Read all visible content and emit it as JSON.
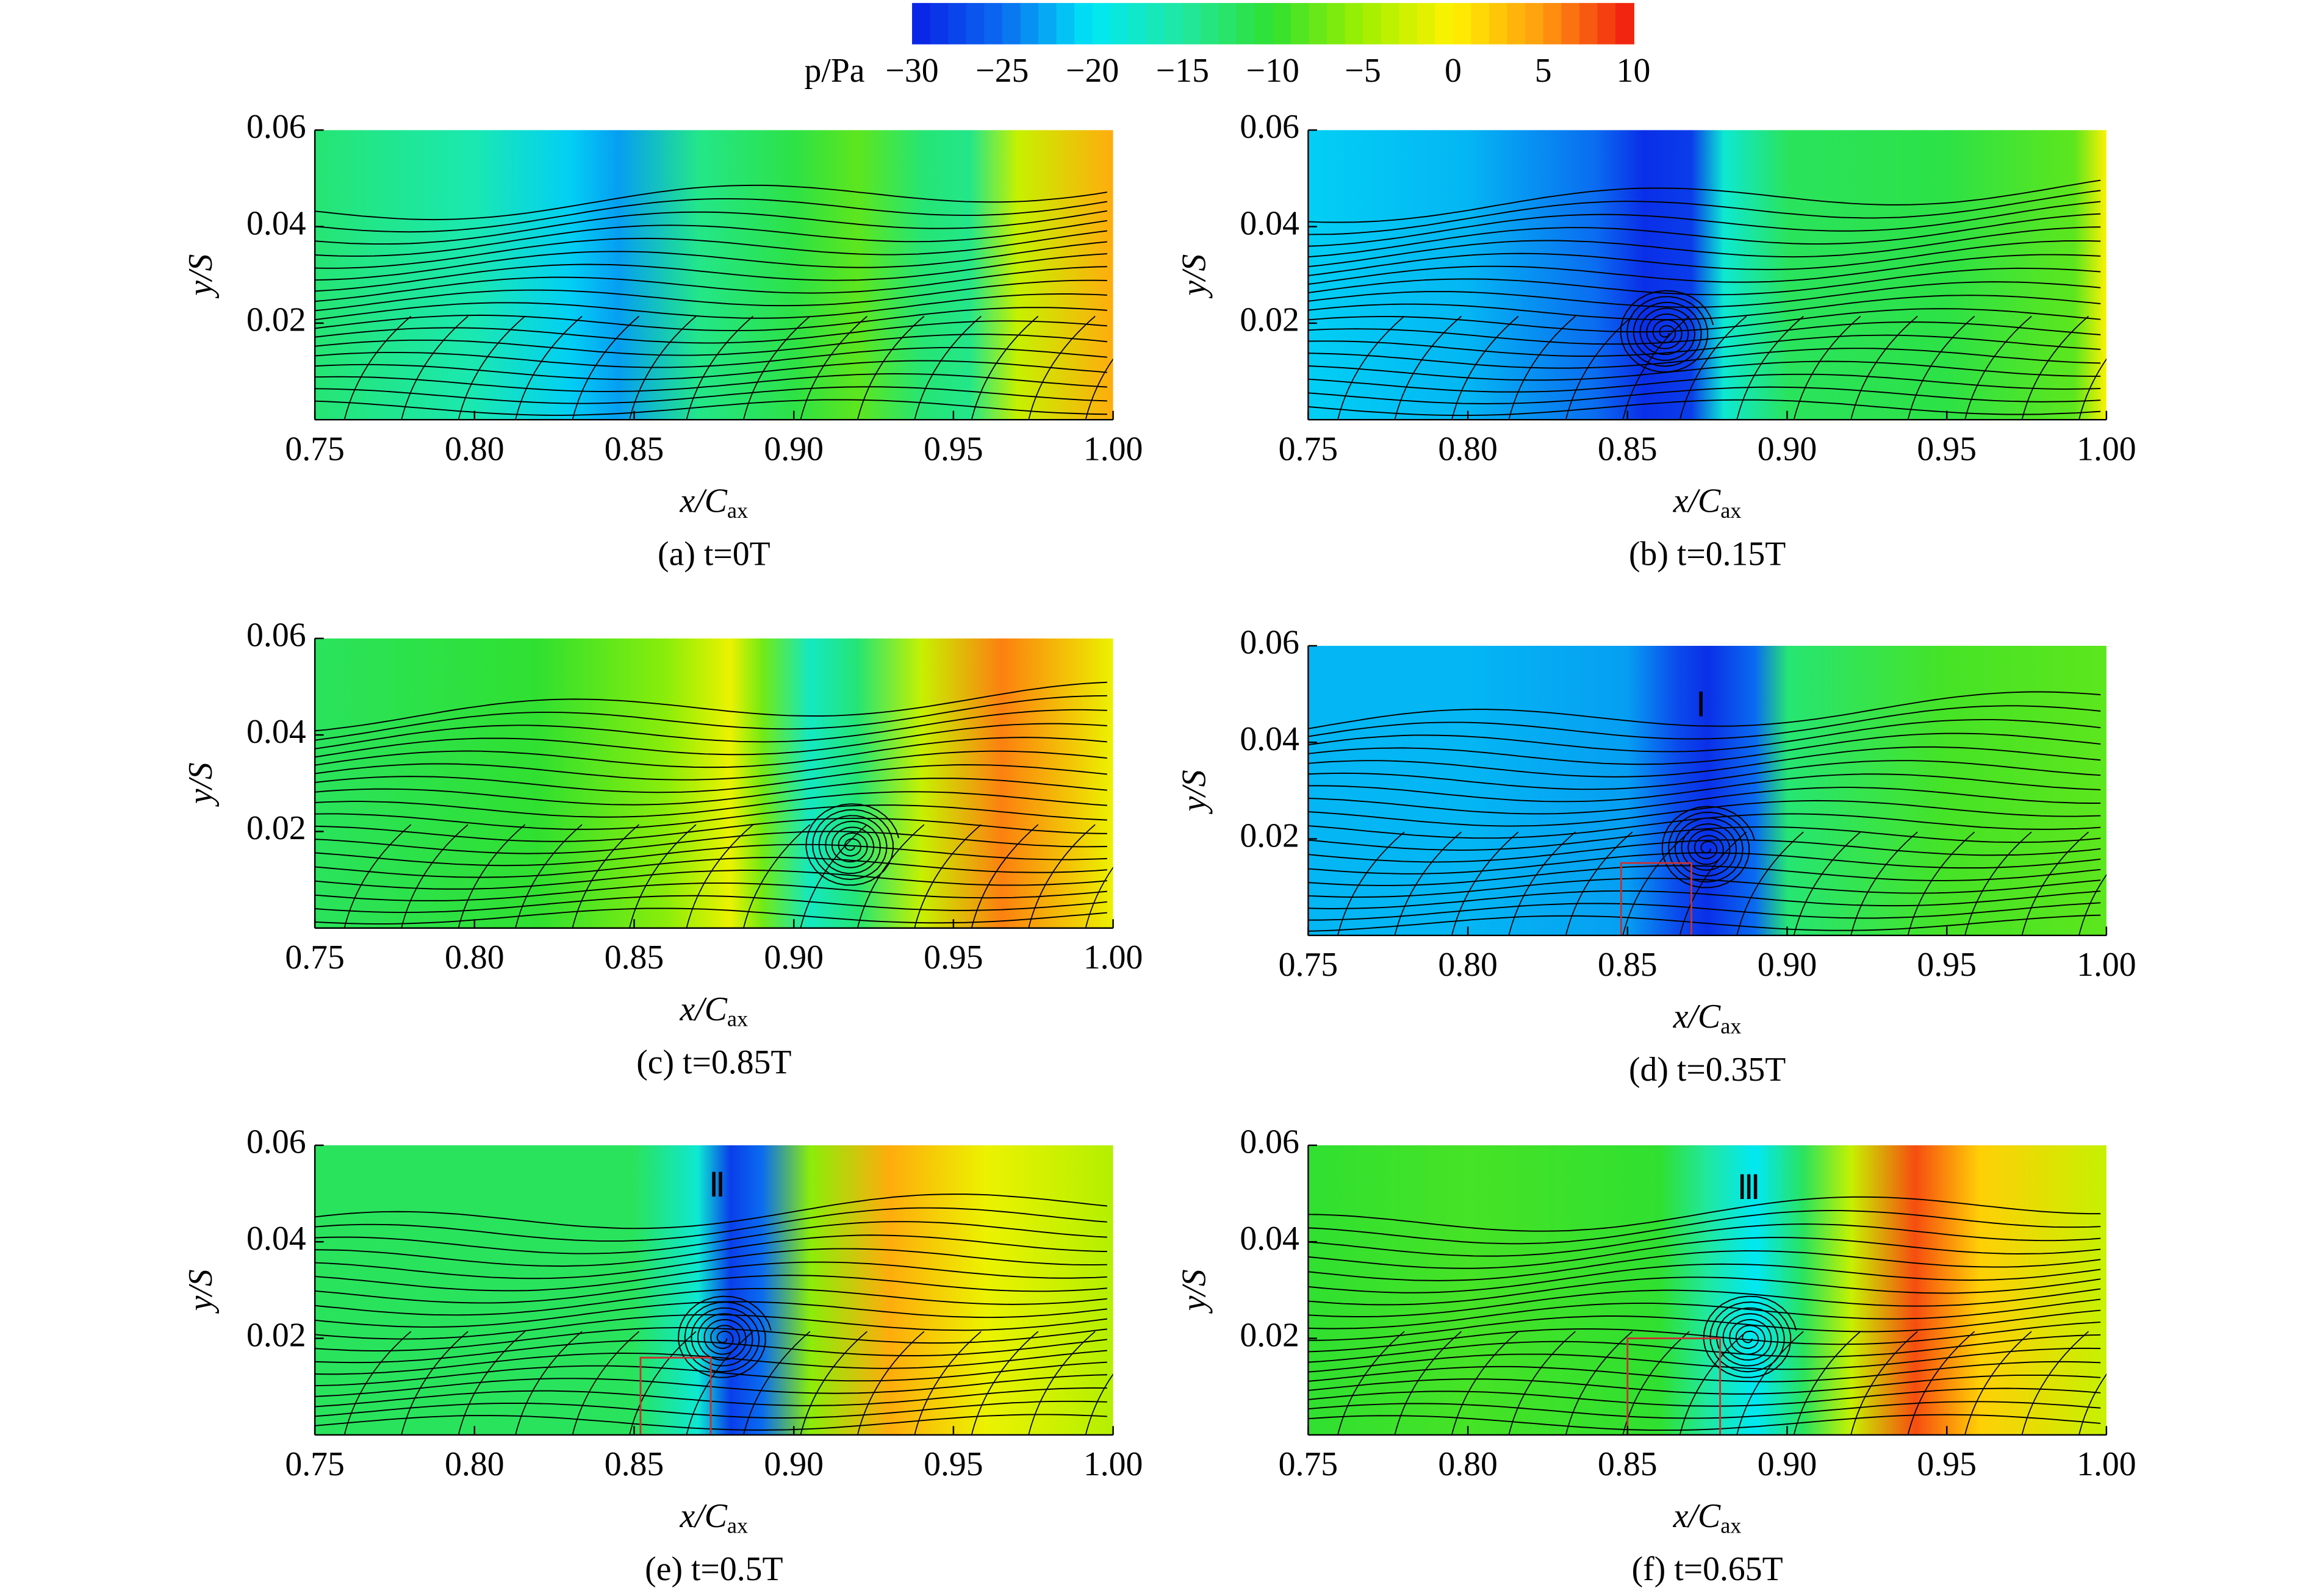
{
  "colorbar": {
    "label": "p/Pa",
    "lim": [
      -30,
      10
    ],
    "ticks": [
      {
        "value": -30,
        "label": "−30"
      },
      {
        "value": -25,
        "label": "−25"
      },
      {
        "value": -20,
        "label": "−20"
      },
      {
        "value": -15,
        "label": "−15"
      },
      {
        "value": -10,
        "label": "−10"
      },
      {
        "value": -5,
        "label": "−5"
      },
      0,
      5,
      10
    ],
    "colors": [
      "#0a1ee6",
      "#0a6cf0",
      "#00e8f5",
      "#20e8a0",
      "#30e030",
      "#a0f000",
      "#fff200",
      "#ff9a10",
      "#f01810"
    ]
  },
  "chart_data": [
    {
      "type": "contour",
      "caption": "(a) t=0T",
      "xlabel": "x/C",
      "xlabel_sub": "ax",
      "ylabel": "y/S",
      "xlim": [
        0.75,
        1.0
      ],
      "ylim": [
        0,
        0.06
      ],
      "xticks": [
        0.75,
        {
          "value": 0.8,
          "label": "0.80"
        },
        0.85,
        {
          "value": 0.9,
          "label": "0.90"
        },
        0.95,
        {
          "value": 1.0,
          "label": "1.00"
        }
      ],
      "yticks": [
        0.02,
        0.04,
        0.06
      ],
      "x": [
        0.75,
        0.8,
        0.83,
        0.845,
        0.87,
        0.9,
        0.92,
        0.94,
        0.955,
        0.97,
        1.0
      ],
      "pressure": [
        -13,
        -16,
        -21,
        -23,
        -14,
        -11,
        -8,
        -13,
        -14,
        -3,
        4
      ]
    },
    {
      "type": "contour",
      "caption": "(b) t=0.15T",
      "xlabel": "x/C",
      "xlabel_sub": "ax",
      "ylabel": "y/S",
      "xlim": [
        0.75,
        1.0
      ],
      "ylim": [
        0,
        0.06
      ],
      "xticks": [
        0.75,
        {
          "value": 0.8,
          "label": "0.80"
        },
        0.85,
        {
          "value": 0.9,
          "label": "0.90"
        },
        0.95,
        {
          "value": 1.0,
          "label": "1.00"
        }
      ],
      "yticks": [
        0.02,
        0.04,
        0.06
      ],
      "x": [
        0.75,
        0.8,
        0.84,
        0.855,
        0.87,
        0.88,
        0.9,
        0.95,
        0.99,
        1.0
      ],
      "pressure": [
        -21,
        -22,
        -25,
        -29,
        -28,
        -18,
        -12,
        -11,
        -8,
        0
      ],
      "vortex": [
        0.862,
        0.018
      ]
    },
    {
      "type": "contour",
      "caption": "(c) t=0.85T",
      "xlabel": "x/C",
      "xlabel_sub": "ax",
      "ylabel": "y/S",
      "xlim": [
        0.75,
        1.0
      ],
      "ylim": [
        0,
        0.06
      ],
      "xticks": [
        0.75,
        {
          "value": 0.8,
          "label": "0.80"
        },
        0.85,
        {
          "value": 0.9,
          "label": "0.90"
        },
        0.95,
        {
          "value": 1.0,
          "label": "1.00"
        }
      ],
      "yticks": [
        0.02,
        0.04,
        0.06
      ],
      "x": [
        0.75,
        0.82,
        0.86,
        0.88,
        0.89,
        0.905,
        0.92,
        0.94,
        0.965,
        1.0
      ],
      "pressure": [
        -12,
        -10,
        -6,
        -1,
        -7,
        -17,
        -13,
        -3,
        6,
        -1
      ],
      "vortex": [
        0.918,
        0.017
      ]
    },
    {
      "type": "contour",
      "caption": "(d) t=0.35T",
      "xlabel": "x/C",
      "xlabel_sub": "ax",
      "ylabel": "y/S",
      "xlim": [
        0.75,
        1.0
      ],
      "ylim": [
        0,
        0.06
      ],
      "xticks": [
        0.75,
        {
          "value": 0.8,
          "label": "0.80"
        },
        0.85,
        {
          "value": 0.9,
          "label": "0.90"
        },
        0.95,
        {
          "value": 1.0,
          "label": "1.00"
        }
      ],
      "yticks": [
        0.02,
        0.04,
        0.06
      ],
      "x": [
        0.75,
        0.8,
        0.85,
        0.865,
        0.875,
        0.89,
        0.9,
        0.95,
        1.0
      ],
      "pressure": [
        -22,
        -22,
        -23,
        -27,
        -29,
        -25,
        -13,
        -9,
        -8
      ],
      "vortex": [
        0.875,
        0.018
      ],
      "annotation": {
        "text": "Ⅰ",
        "x": 0.873,
        "y": 0.047
      },
      "box": {
        "x": [
          0.848,
          0.87
        ],
        "y": [
          0,
          0.015
        ]
      }
    },
    {
      "type": "contour",
      "caption": "(e) t=0.5T",
      "xlabel": "x/C",
      "xlabel_sub": "ax",
      "ylabel": "y/S",
      "xlim": [
        0.75,
        1.0
      ],
      "ylim": [
        0,
        0.06
      ],
      "xticks": [
        0.75,
        {
          "value": 0.8,
          "label": "0.80"
        },
        0.85,
        {
          "value": 0.9,
          "label": "0.90"
        },
        0.95,
        {
          "value": 1.0,
          "label": "1.00"
        }
      ],
      "yticks": [
        0.02,
        0.04,
        0.06
      ],
      "x": [
        0.75,
        0.8,
        0.85,
        0.87,
        0.88,
        0.89,
        0.905,
        0.93,
        0.96,
        1.0
      ],
      "pressure": [
        -12,
        -12,
        -12,
        -18,
        -28,
        -25,
        -6,
        4,
        -1,
        -4
      ],
      "vortex": [
        0.878,
        0.02
      ],
      "annotation": {
        "text": "Ⅱ",
        "x": 0.876,
        "y": 0.051
      },
      "box": {
        "x": [
          0.852,
          0.874
        ],
        "y": [
          0,
          0.016
        ]
      }
    },
    {
      "type": "contour",
      "caption": "(f) t=0.65T",
      "xlabel": "x/C",
      "xlabel_sub": "ax",
      "ylabel": "y/S",
      "xlim": [
        0.75,
        1.0
      ],
      "ylim": [
        0,
        0.06
      ],
      "xticks": [
        0.75,
        {
          "value": 0.8,
          "label": "0.80"
        },
        0.85,
        {
          "value": 0.9,
          "label": "0.90"
        },
        0.95,
        {
          "value": 1.0,
          "label": "1.00"
        }
      ],
      "yticks": [
        0.02,
        0.04,
        0.06
      ],
      "x": [
        0.75,
        0.8,
        0.86,
        0.875,
        0.89,
        0.905,
        0.92,
        0.94,
        0.96,
        1.0
      ],
      "pressure": [
        -10,
        -9,
        -10,
        -15,
        -20,
        -12,
        -3,
        8,
        2,
        -3
      ],
      "vortex": [
        0.888,
        0.02
      ],
      "annotation": {
        "text": "Ⅲ",
        "x": 0.888,
        "y": 0.0505
      },
      "box": {
        "x": [
          0.85,
          0.879
        ],
        "y": [
          0,
          0.02
        ]
      }
    }
  ]
}
